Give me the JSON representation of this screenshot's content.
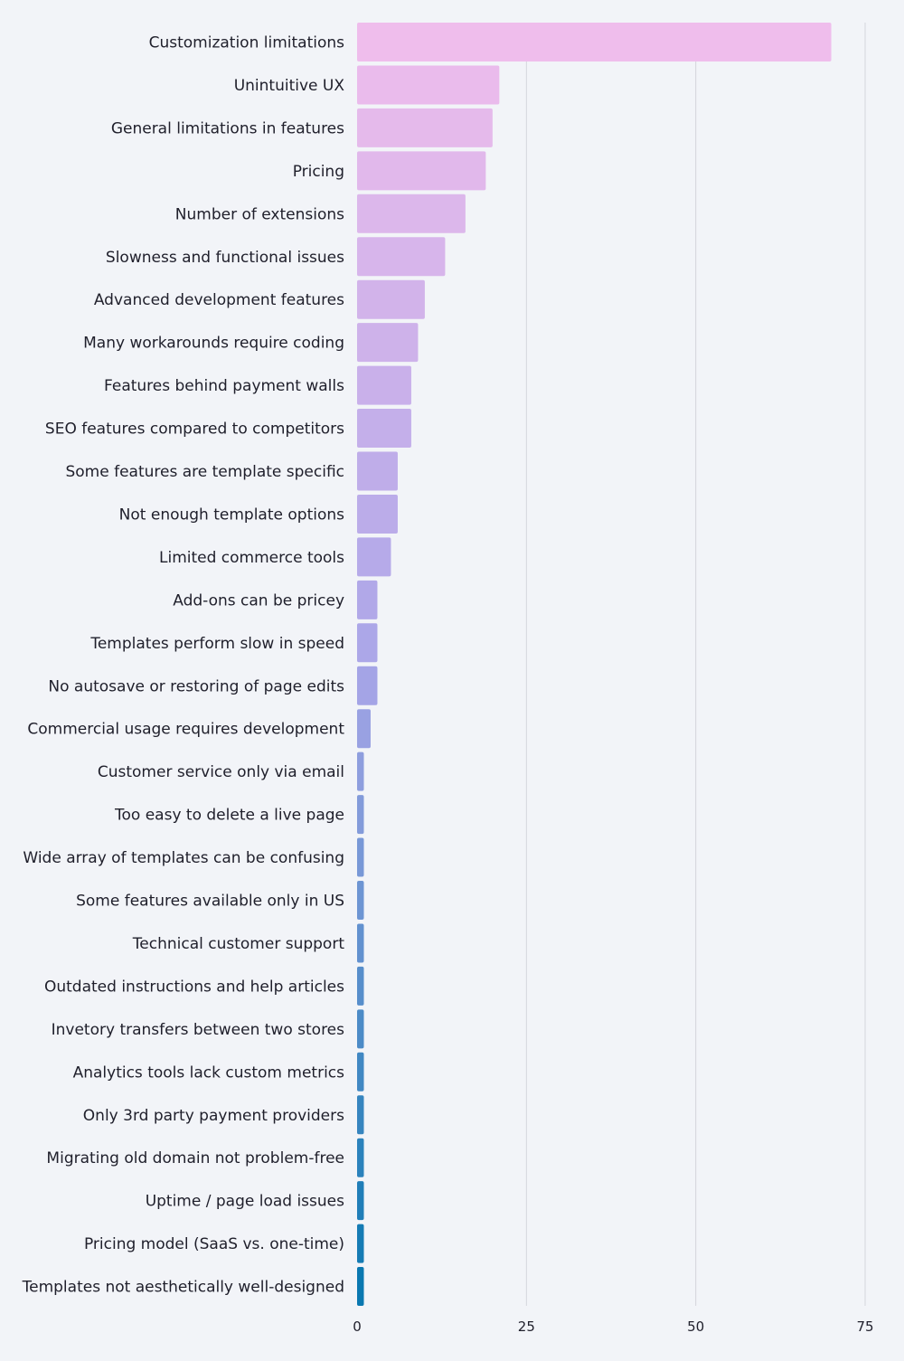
{
  "chart_data": {
    "type": "bar",
    "orientation": "horizontal",
    "title": "",
    "xlabel": "",
    "ylabel": "",
    "xlim": [
      0,
      75
    ],
    "xticks": [
      0,
      25,
      50,
      75
    ],
    "grid": true,
    "categories": [
      "Customization limitations",
      "Unintuitive UX",
      "General limitations in features",
      "Pricing",
      "Number of extensions",
      "Slowness and functional issues",
      "Advanced development features",
      "Many workarounds require coding",
      "Features behind payment walls",
      "SEO features compared to competitors",
      "Some features are template specific",
      "Not enough template options",
      "Limited commerce tools",
      "Add-ons can be pricey",
      "Templates perform slow in speed",
      "No autosave or restoring of page edits",
      "Commercial usage requires development",
      "Customer service only via email",
      "Too easy to delete a live page",
      "Wide array of templates can be confusing",
      "Some features available only in US",
      "Technical customer support",
      "Outdated instructions and help articles",
      "Invetory transfers between two stores",
      "Analytics tools lack custom metrics",
      "Only 3rd party payment providers",
      "Migrating old domain not problem-free",
      "Uptime / page load issues",
      "Pricing model (SaaS vs. one-time)",
      "Templates not aesthetically well-designed"
    ],
    "values": [
      70,
      21,
      20,
      19,
      16,
      13,
      10,
      9,
      8,
      8,
      6,
      6,
      5,
      3,
      3,
      3,
      2,
      1,
      1,
      1,
      1,
      1,
      1,
      1,
      1,
      1,
      1,
      1,
      1,
      1
    ],
    "colors": {
      "gradient_start": "#efbdec",
      "gradient_mid": "#aaa6e8",
      "gradient_end": "#0a78b0",
      "grid": "#d4d6dc",
      "background": "#f2f4f8"
    }
  }
}
